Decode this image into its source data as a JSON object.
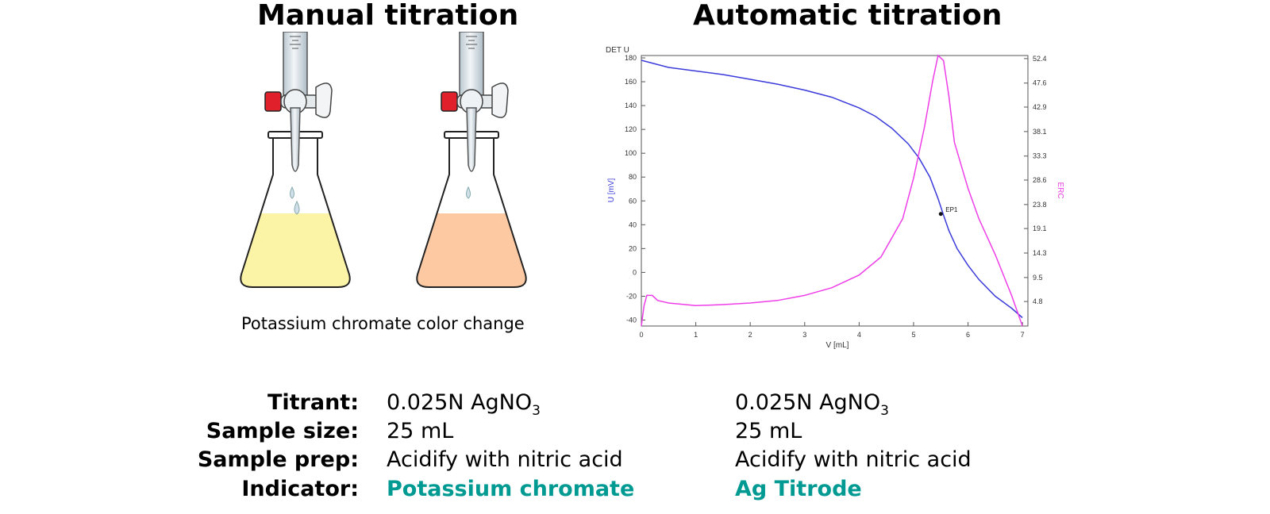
{
  "headings": {
    "manual": "Manual titration",
    "automatic": "Automatic titration"
  },
  "flasks": {
    "caption": "Potassium chromate color change",
    "left_liquid_color": "#fbf3a6",
    "right_liquid_color": "#fcc9a3",
    "stopcock_color": "#e0202a"
  },
  "chart_data": {
    "type": "line",
    "title": "DET U",
    "xlabel": "V [mL]",
    "ylabel": "U [mV]",
    "y2label": "ERC",
    "xlim": [
      0,
      7.1
    ],
    "ylim": [
      -45,
      182
    ],
    "y2lim": [
      0,
      53
    ],
    "x_ticks": [
      0,
      1,
      2,
      3,
      4,
      5,
      6,
      7
    ],
    "y_ticks": [
      180,
      160,
      140,
      120,
      100,
      80,
      60,
      40,
      20,
      0,
      -20,
      -40
    ],
    "y2_ticks": [
      "52.4",
      "47.6",
      "42.9",
      "38.1",
      "33.3",
      "28.6",
      "23.8",
      "19.1",
      "14.3",
      "9.5",
      "4.8"
    ],
    "y2_tick_values": [
      52.4,
      47.6,
      42.9,
      38.1,
      33.3,
      28.6,
      23.8,
      19.1,
      14.3,
      9.5,
      4.8
    ],
    "grid": false,
    "series": [
      {
        "axis": "left",
        "color": "#3b3bdb",
        "x": [
          0,
          0.5,
          1,
          1.5,
          2,
          2.5,
          3,
          3.5,
          4,
          4.3,
          4.6,
          4.9,
          5.1,
          5.3,
          5.45,
          5.55,
          5.65,
          5.8,
          6.0,
          6.2,
          6.5,
          6.8,
          7.0
        ],
        "y": [
          178,
          172,
          169,
          166,
          162,
          158,
          153,
          147,
          138,
          131,
          121,
          108,
          96,
          80,
          62,
          48,
          35,
          20,
          6,
          -6,
          -20,
          -30,
          -38
        ]
      },
      {
        "axis": "right",
        "color": "#ee3ee8",
        "x": [
          0,
          0.05,
          0.1,
          0.2,
          0.3,
          0.5,
          1,
          1.5,
          2,
          2.5,
          3,
          3.5,
          4,
          4.4,
          4.8,
          5.0,
          5.2,
          5.35,
          5.45,
          5.55,
          5.65,
          5.75,
          6.0,
          6.2,
          6.5,
          6.8,
          7.0
        ],
        "y": [
          0,
          4,
          6,
          6,
          5,
          4.5,
          4,
          4.2,
          4.5,
          5,
          6,
          7.5,
          10,
          13.5,
          21,
          29,
          39,
          48,
          53,
          52,
          45,
          36,
          27,
          21,
          14,
          6,
          0
        ]
      }
    ],
    "annotations": [
      {
        "text": "EP1",
        "x": 5.5,
        "y": 49
      }
    ]
  },
  "table": {
    "rows": [
      {
        "label": "Titrant:",
        "manual": "0.025N AgNO",
        "manual_sub": "3",
        "automatic": "0.025N AgNO",
        "automatic_sub": "3"
      },
      {
        "label": "Sample size:",
        "manual": "25 mL",
        "automatic": "25 mL"
      },
      {
        "label": "Sample prep:",
        "manual": "Acidify with nitric acid",
        "automatic": "Acidify with nitric acid"
      },
      {
        "label": "Indicator:",
        "manual": "Potassium chromate",
        "automatic": "Ag Titrode"
      }
    ],
    "indicator_color": "#009a93"
  }
}
